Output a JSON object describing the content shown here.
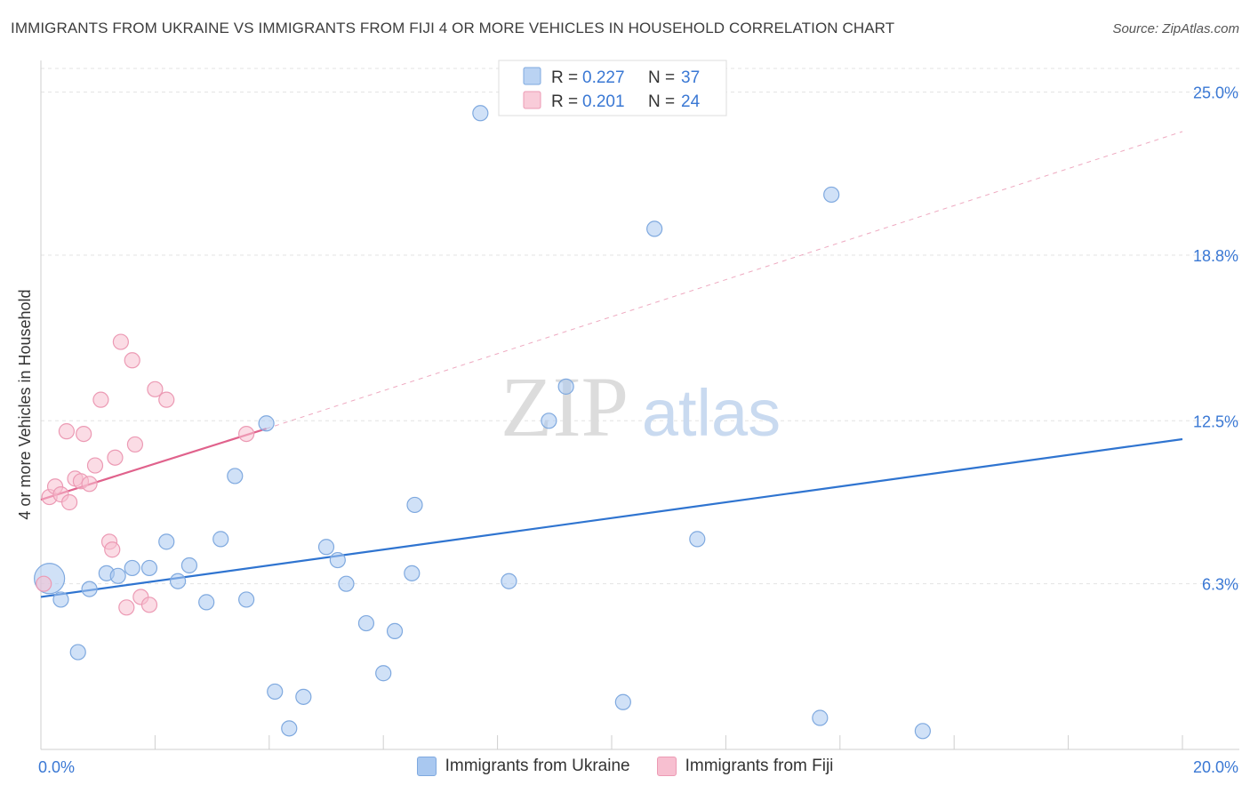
{
  "header": {
    "title": "IMMIGRANTS FROM UKRAINE VS IMMIGRANTS FROM FIJI 4 OR MORE VEHICLES IN HOUSEHOLD CORRELATION CHART",
    "source": "Source: ZipAtlas.com"
  },
  "watermark": {
    "zip": "ZIP",
    "atlas": "atlas"
  },
  "chart_data": {
    "type": "scatter",
    "title": "IMMIGRANTS FROM UKRAINE VS IMMIGRANTS FROM FIJI 4 OR MORE VEHICLES IN HOUSEHOLD CORRELATION CHART",
    "xlabel": "",
    "ylabel": "4 or more Vehicles in Household",
    "xlim": [
      0,
      20
    ],
    "ylim": [
      0,
      25.9
    ],
    "x_tick_labels": [
      "0.0%",
      "20.0%"
    ],
    "y_ticks": [
      6.3,
      12.5,
      18.8,
      25.0
    ],
    "y_tick_labels": [
      "6.3%",
      "12.5%",
      "18.8%",
      "25.0%"
    ],
    "grid": true,
    "legend_placement": "top-center",
    "series": [
      {
        "name": "Immigrants from Ukraine",
        "color": "#a9c8f0",
        "stroke": "#7fa9df",
        "line_color": "#2f74d0",
        "r_label": "R = ",
        "r_value": "0.227",
        "n_label": "N = ",
        "n_value": "37",
        "points": [
          {
            "x": 0.15,
            "y": 6.5,
            "big": true
          },
          {
            "x": 0.35,
            "y": 5.7
          },
          {
            "x": 0.65,
            "y": 3.7
          },
          {
            "x": 0.85,
            "y": 6.1
          },
          {
            "x": 1.15,
            "y": 6.7
          },
          {
            "x": 1.35,
            "y": 6.6
          },
          {
            "x": 1.6,
            "y": 6.9
          },
          {
            "x": 1.9,
            "y": 6.9
          },
          {
            "x": 2.2,
            "y": 7.9
          },
          {
            "x": 2.4,
            "y": 6.4
          },
          {
            "x": 2.6,
            "y": 7.0
          },
          {
            "x": 2.9,
            "y": 5.6
          },
          {
            "x": 3.15,
            "y": 8.0
          },
          {
            "x": 3.6,
            "y": 5.7
          },
          {
            "x": 3.4,
            "y": 10.4
          },
          {
            "x": 3.95,
            "y": 12.4
          },
          {
            "x": 4.1,
            "y": 2.2
          },
          {
            "x": 4.35,
            "y": 0.8
          },
          {
            "x": 4.6,
            "y": 2.0
          },
          {
            "x": 5.0,
            "y": 7.7
          },
          {
            "x": 5.2,
            "y": 7.2
          },
          {
            "x": 5.35,
            "y": 6.3
          },
          {
            "x": 5.7,
            "y": 4.8
          },
          {
            "x": 6.0,
            "y": 2.9
          },
          {
            "x": 6.2,
            "y": 4.5
          },
          {
            "x": 6.5,
            "y": 6.7
          },
          {
            "x": 6.55,
            "y": 9.3
          },
          {
            "x": 7.7,
            "y": 24.2
          },
          {
            "x": 8.2,
            "y": 6.4
          },
          {
            "x": 8.9,
            "y": 12.5
          },
          {
            "x": 9.2,
            "y": 13.8
          },
          {
            "x": 10.2,
            "y": 1.8
          },
          {
            "x": 10.75,
            "y": 19.8
          },
          {
            "x": 11.5,
            "y": 8.0
          },
          {
            "x": 13.65,
            "y": 1.2
          },
          {
            "x": 13.85,
            "y": 21.1
          },
          {
            "x": 15.45,
            "y": 0.7
          }
        ],
        "trend": {
          "x": [
            0,
            20
          ],
          "y": [
            5.8,
            11.8
          ]
        }
      },
      {
        "name": "Immigrants from Fiji",
        "color": "#f7bfd0",
        "stroke": "#ec9ab4",
        "line_color": "#e0628c",
        "r_label": "R = ",
        "r_value": "0.201",
        "n_label": "N = ",
        "n_value": "24",
        "points": [
          {
            "x": 0.05,
            "y": 6.3
          },
          {
            "x": 0.15,
            "y": 9.6
          },
          {
            "x": 0.25,
            "y": 10.0
          },
          {
            "x": 0.35,
            "y": 9.7
          },
          {
            "x": 0.45,
            "y": 12.1
          },
          {
            "x": 0.5,
            "y": 9.4
          },
          {
            "x": 0.6,
            "y": 10.3
          },
          {
            "x": 0.7,
            "y": 10.2
          },
          {
            "x": 0.75,
            "y": 12.0
          },
          {
            "x": 0.85,
            "y": 10.1
          },
          {
            "x": 0.95,
            "y": 10.8
          },
          {
            "x": 1.05,
            "y": 13.3
          },
          {
            "x": 1.2,
            "y": 7.9
          },
          {
            "x": 1.25,
            "y": 7.6
          },
          {
            "x": 1.3,
            "y": 11.1
          },
          {
            "x": 1.4,
            "y": 15.5
          },
          {
            "x": 1.5,
            "y": 5.4
          },
          {
            "x": 1.6,
            "y": 14.8
          },
          {
            "x": 1.65,
            "y": 11.6
          },
          {
            "x": 1.75,
            "y": 5.8
          },
          {
            "x": 1.9,
            "y": 5.5
          },
          {
            "x": 2.0,
            "y": 13.7
          },
          {
            "x": 2.2,
            "y": 13.3
          },
          {
            "x": 3.6,
            "y": 12.0
          }
        ],
        "trend": {
          "x": [
            0,
            3.95
          ],
          "y": [
            9.5,
            12.2
          ]
        },
        "trend_ext": {
          "x": [
            3.95,
            20
          ],
          "y": [
            12.2,
            23.5
          ]
        }
      }
    ]
  }
}
